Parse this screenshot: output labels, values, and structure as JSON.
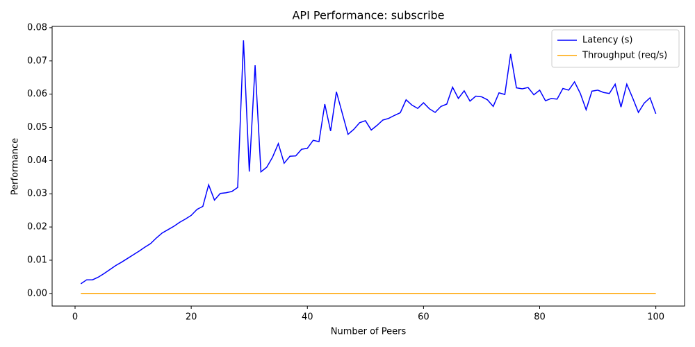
{
  "chart_data": {
    "type": "line",
    "title": "API Performance: subscribe",
    "x_label": "Number of Peers",
    "y_label": "Performance",
    "x": [
      1,
      2,
      3,
      4,
      5,
      6,
      7,
      8,
      9,
      10,
      11,
      12,
      13,
      14,
      15,
      16,
      17,
      18,
      19,
      20,
      21,
      22,
      23,
      24,
      25,
      26,
      27,
      28,
      29,
      30,
      31,
      32,
      33,
      34,
      35,
      36,
      37,
      38,
      39,
      40,
      41,
      42,
      43,
      44,
      45,
      46,
      47,
      48,
      49,
      50,
      51,
      52,
      53,
      54,
      55,
      56,
      57,
      58,
      59,
      60,
      61,
      62,
      63,
      64,
      65,
      66,
      67,
      68,
      69,
      70,
      71,
      72,
      73,
      74,
      75,
      76,
      77,
      78,
      79,
      80,
      81,
      82,
      83,
      84,
      85,
      86,
      87,
      88,
      89,
      90,
      91,
      92,
      93,
      94,
      95,
      96,
      97,
      98,
      99,
      100
    ],
    "series": [
      {
        "name": "Latency (s)",
        "color": "#0000ff",
        "values": [
          0.0029,
          0.0041,
          0.0041,
          0.0049,
          0.006,
          0.0072,
          0.0084,
          0.0094,
          0.0105,
          0.0116,
          0.0127,
          0.0139,
          0.015,
          0.0167,
          0.0182,
          0.0192,
          0.0202,
          0.0214,
          0.0224,
          0.0235,
          0.0253,
          0.0262,
          0.0327,
          0.0281,
          0.0301,
          0.0303,
          0.0307,
          0.0319,
          0.0762,
          0.0367,
          0.0687,
          0.0366,
          0.038,
          0.041,
          0.0451,
          0.0392,
          0.0413,
          0.0414,
          0.0434,
          0.0437,
          0.0461,
          0.0457,
          0.057,
          0.0489,
          0.0607,
          0.0543,
          0.0479,
          0.0494,
          0.0514,
          0.052,
          0.0492,
          0.0506,
          0.0522,
          0.0527,
          0.0536,
          0.0544,
          0.0583,
          0.0567,
          0.0557,
          0.0574,
          0.0556,
          0.0545,
          0.0563,
          0.057,
          0.0621,
          0.0587,
          0.061,
          0.0579,
          0.0594,
          0.0592,
          0.0583,
          0.0563,
          0.0604,
          0.0599,
          0.0721,
          0.0619,
          0.0616,
          0.062,
          0.0598,
          0.0612,
          0.058,
          0.0587,
          0.0585,
          0.0617,
          0.0612,
          0.0637,
          0.0602,
          0.0553,
          0.0609,
          0.0612,
          0.0605,
          0.0602,
          0.063,
          0.0561,
          0.063,
          0.0589,
          0.0545,
          0.0573,
          0.0589,
          0.0541
        ]
      },
      {
        "name": "Throughput (req/s)",
        "color": "#ffa500",
        "values": [
          0,
          0,
          0,
          0,
          0,
          0,
          0,
          0,
          0,
          0,
          0,
          0,
          0,
          0,
          0,
          0,
          0,
          0,
          0,
          0,
          0,
          0,
          0,
          0,
          0,
          0,
          0,
          0,
          0,
          0,
          0,
          0,
          0,
          0,
          0,
          0,
          0,
          0,
          0,
          0,
          0,
          0,
          0,
          0,
          0,
          0,
          0,
          0,
          0,
          0,
          0,
          0,
          0,
          0,
          0,
          0,
          0,
          0,
          0,
          0,
          0,
          0,
          0,
          0,
          0,
          0,
          0,
          0,
          0,
          0,
          0,
          0,
          0,
          0,
          0,
          0,
          0,
          0,
          0,
          0,
          0,
          0,
          0,
          0,
          0,
          0,
          0,
          0,
          0,
          0,
          0,
          0,
          0,
          0,
          0,
          0,
          0,
          0,
          0,
          0
        ]
      }
    ],
    "xlim": [
      -3.95,
      104.95
    ],
    "xticks": [
      0,
      20,
      40,
      60,
      80,
      100
    ],
    "ylim": [
      -0.0038,
      0.0804
    ],
    "yticks": [
      {
        "value": 0,
        "label": "0.00"
      },
      {
        "value": 0.01,
        "label": "0.01"
      },
      {
        "value": 0.02,
        "label": "0.02"
      },
      {
        "value": 0.03,
        "label": "0.03"
      },
      {
        "value": 0.04,
        "label": "0.04"
      },
      {
        "value": 0.05,
        "label": "0.05"
      },
      {
        "value": 0.06,
        "label": "0.06"
      },
      {
        "value": 0.07,
        "label": "0.07"
      },
      {
        "value": 0.08,
        "label": "0.08"
      }
    ],
    "grid": false,
    "legend": "upper right"
  }
}
